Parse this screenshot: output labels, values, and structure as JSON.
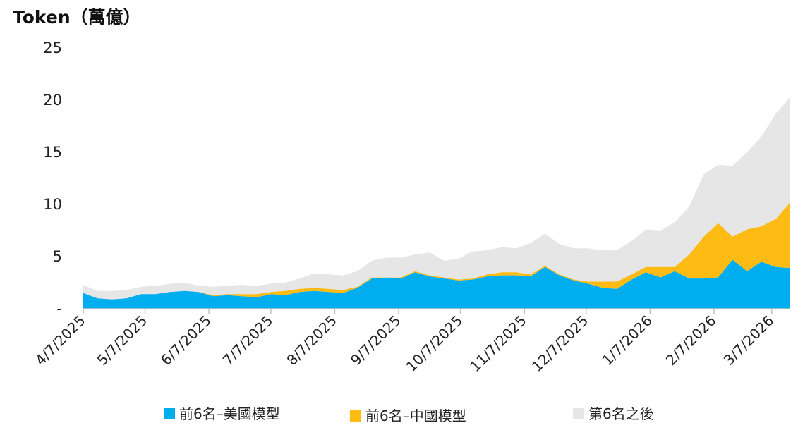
{
  "chart_data": {
    "type": "area",
    "stacked": true,
    "title": "",
    "unit_label": "Token（萬億）",
    "xlabel": "",
    "ylabel": "",
    "ylim": [
      0,
      25
    ],
    "yticks": [
      {
        "value": 0,
        "label": "-"
      },
      {
        "value": 5,
        "label": "5"
      },
      {
        "value": 10,
        "label": "10"
      },
      {
        "value": 15,
        "label": "15"
      },
      {
        "value": 20,
        "label": "20"
      },
      {
        "value": 25,
        "label": "25"
      }
    ],
    "xticks": [
      "4/7/2025",
      "5/7/2025",
      "6/7/2025",
      "7/7/2025",
      "8/7/2025",
      "9/7/2025",
      "10/7/2025",
      "11/7/2025",
      "12/7/2025",
      "1/7/2026",
      "2/7/2026",
      "3/7/2026"
    ],
    "x": [
      "2025-04-07",
      "2025-04-14",
      "2025-04-21",
      "2025-04-28",
      "2025-05-05",
      "2025-05-12",
      "2025-05-19",
      "2025-05-26",
      "2025-06-02",
      "2025-06-09",
      "2025-06-16",
      "2025-06-23",
      "2025-06-30",
      "2025-07-07",
      "2025-07-14",
      "2025-07-21",
      "2025-07-28",
      "2025-08-04",
      "2025-08-11",
      "2025-08-18",
      "2025-08-25",
      "2025-09-01",
      "2025-09-08",
      "2025-09-15",
      "2025-09-22",
      "2025-09-29",
      "2025-10-06",
      "2025-10-13",
      "2025-10-20",
      "2025-10-27",
      "2025-11-03",
      "2025-11-10",
      "2025-11-17",
      "2025-11-24",
      "2025-12-01",
      "2025-12-08",
      "2025-12-15",
      "2025-12-22",
      "2025-12-29",
      "2026-01-05",
      "2026-01-12",
      "2026-01-19",
      "2026-01-26",
      "2026-02-02",
      "2026-02-09",
      "2026-02-16",
      "2026-02-23",
      "2026-03-02",
      "2026-03-09",
      "2026-03-16"
    ],
    "legend_position": "bottom",
    "grid": false,
    "series": [
      {
        "name": "前6名–美國模型",
        "color": "#00AEEF",
        "values": [
          1.5,
          1.0,
          0.9,
          1.0,
          1.4,
          1.4,
          1.6,
          1.7,
          1.6,
          1.2,
          1.3,
          1.2,
          1.1,
          1.4,
          1.3,
          1.6,
          1.7,
          1.6,
          1.5,
          2.0,
          2.9,
          3.0,
          2.9,
          3.5,
          3.1,
          2.9,
          2.7,
          2.8,
          3.1,
          3.2,
          3.2,
          3.1,
          4.0,
          3.2,
          2.7,
          2.4,
          2.0,
          1.9,
          2.8,
          3.5,
          3.0,
          3.6,
          2.9,
          2.9,
          3.0,
          4.7,
          3.6,
          4.5,
          4.0,
          3.9
        ]
      },
      {
        "name": "前6名–中國模型",
        "color": "#FDBB14",
        "values": [
          0.0,
          0.0,
          0.0,
          0.0,
          0.0,
          0.0,
          0.0,
          0.0,
          0.0,
          0.1,
          0.1,
          0.2,
          0.3,
          0.2,
          0.4,
          0.3,
          0.3,
          0.3,
          0.3,
          0.1,
          0.1,
          0.0,
          0.1,
          0.1,
          0.1,
          0.1,
          0.1,
          0.1,
          0.2,
          0.3,
          0.3,
          0.2,
          0.1,
          0.1,
          0.1,
          0.2,
          0.6,
          0.7,
          0.5,
          0.5,
          1.0,
          0.4,
          2.3,
          4.0,
          5.2,
          2.2,
          4.0,
          3.4,
          4.6,
          6.3
        ]
      },
      {
        "name": "第6名之後",
        "color": "#E6E6E6",
        "values": [
          0.8,
          0.7,
          0.8,
          0.8,
          0.7,
          0.8,
          0.8,
          0.8,
          0.6,
          0.8,
          0.8,
          0.9,
          0.8,
          0.8,
          0.8,
          1.0,
          1.4,
          1.4,
          1.4,
          1.5,
          1.6,
          1.9,
          1.9,
          1.6,
          2.2,
          1.6,
          2.0,
          2.6,
          2.3,
          2.4,
          2.3,
          3.0,
          3.1,
          2.9,
          3.0,
          3.2,
          3.0,
          3.0,
          3.2,
          3.6,
          3.5,
          4.3,
          4.6,
          6.0,
          5.6,
          6.8,
          7.4,
          8.6,
          10.1,
          10.1
        ]
      }
    ]
  }
}
